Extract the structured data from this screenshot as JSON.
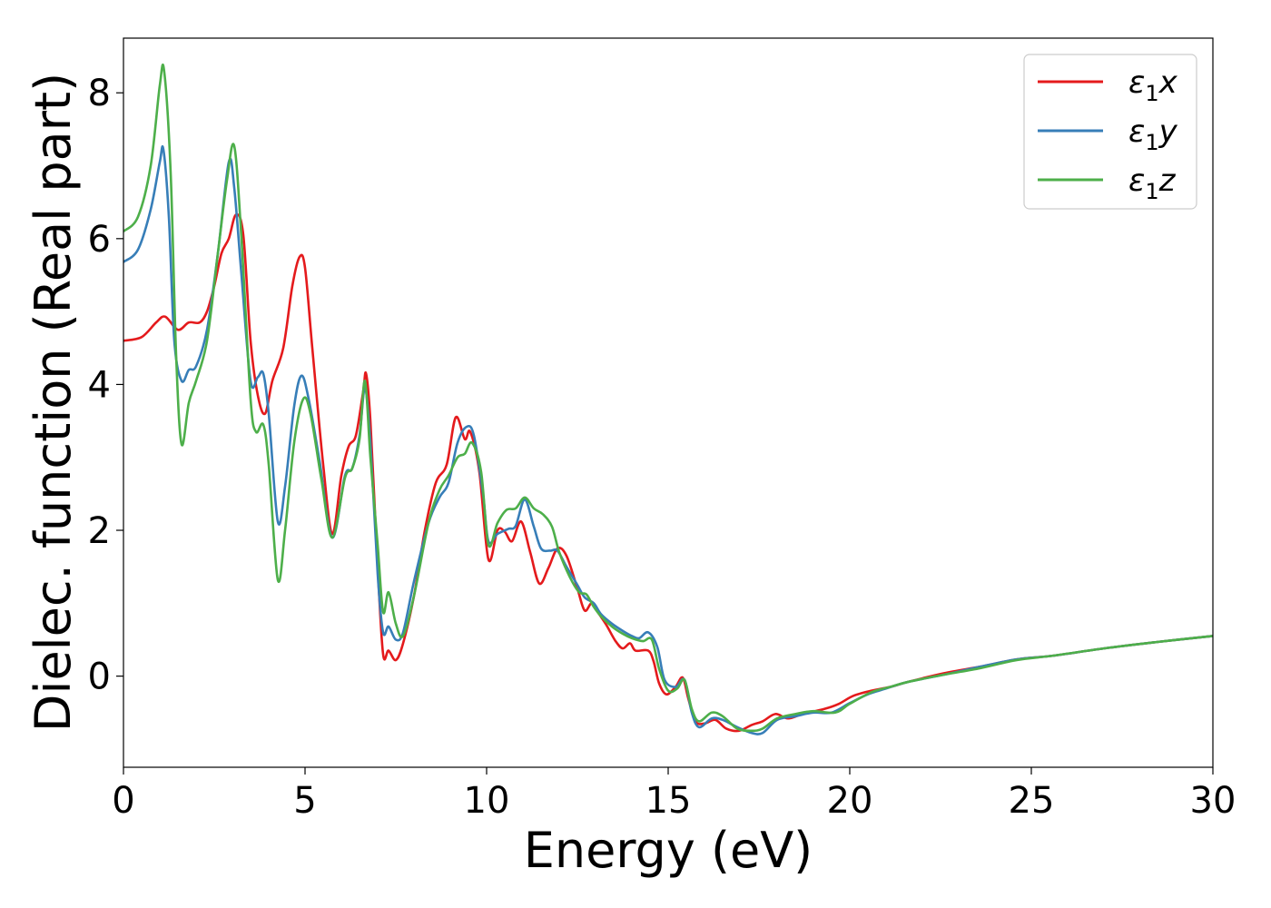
{
  "chart_data": {
    "type": "line",
    "xlabel": "Energy (eV)",
    "ylabel": "Dielec. function (Real part)",
    "xlim": [
      0,
      30
    ],
    "ylim": [
      -1.25,
      8.75
    ],
    "xticks": [
      0,
      5,
      10,
      15,
      20,
      25,
      30
    ],
    "yticks": [
      0,
      2,
      4,
      6,
      8
    ],
    "xtick_labels": [
      "0",
      "5",
      "10",
      "15",
      "20",
      "25",
      "30"
    ],
    "ytick_labels": [
      "0",
      "2",
      "4",
      "6",
      "8"
    ],
    "grid": false,
    "legend_position": "top-right",
    "series": [
      {
        "name": "ε₁x",
        "label_parts": {
          "base": "ε",
          "sub": "1",
          "suffix": "x"
        },
        "color": "#e41a1c",
        "points": [
          [
            0,
            4.6
          ],
          [
            0.5,
            4.65
          ],
          [
            0.9,
            4.85
          ],
          [
            1.15,
            4.93
          ],
          [
            1.5,
            4.75
          ],
          [
            1.8,
            4.85
          ],
          [
            2.1,
            4.85
          ],
          [
            2.3,
            5.0
          ],
          [
            2.5,
            5.35
          ],
          [
            2.7,
            5.8
          ],
          [
            2.9,
            6.0
          ],
          [
            3.1,
            6.33
          ],
          [
            3.3,
            6.05
          ],
          [
            3.5,
            4.6
          ],
          [
            3.7,
            3.85
          ],
          [
            3.9,
            3.6
          ],
          [
            4.1,
            4.05
          ],
          [
            4.4,
            4.5
          ],
          [
            4.65,
            5.35
          ],
          [
            4.85,
            5.75
          ],
          [
            5.0,
            5.6
          ],
          [
            5.2,
            4.5
          ],
          [
            5.5,
            2.9
          ],
          [
            5.75,
            1.95
          ],
          [
            6.0,
            2.75
          ],
          [
            6.2,
            3.15
          ],
          [
            6.4,
            3.3
          ],
          [
            6.6,
            3.9
          ],
          [
            6.68,
            4.15
          ],
          [
            6.8,
            3.5
          ],
          [
            7.0,
            1.5
          ],
          [
            7.15,
            0.3
          ],
          [
            7.3,
            0.35
          ],
          [
            7.5,
            0.22
          ],
          [
            7.7,
            0.45
          ],
          [
            8.0,
            1.1
          ],
          [
            8.3,
            2.0
          ],
          [
            8.6,
            2.65
          ],
          [
            8.9,
            2.9
          ],
          [
            9.15,
            3.55
          ],
          [
            9.4,
            3.25
          ],
          [
            9.55,
            3.35
          ],
          [
            9.8,
            2.8
          ],
          [
            10.05,
            1.6
          ],
          [
            10.3,
            2.0
          ],
          [
            10.5,
            1.98
          ],
          [
            10.7,
            1.85
          ],
          [
            10.95,
            2.12
          ],
          [
            11.2,
            1.7
          ],
          [
            11.45,
            1.27
          ],
          [
            11.7,
            1.48
          ],
          [
            11.95,
            1.75
          ],
          [
            12.2,
            1.65
          ],
          [
            12.5,
            1.2
          ],
          [
            12.7,
            0.9
          ],
          [
            12.9,
            1.0
          ],
          [
            13.1,
            0.85
          ],
          [
            13.3,
            0.7
          ],
          [
            13.55,
            0.48
          ],
          [
            13.75,
            0.38
          ],
          [
            13.95,
            0.45
          ],
          [
            14.1,
            0.35
          ],
          [
            14.45,
            0.35
          ],
          [
            14.6,
            0.2
          ],
          [
            14.75,
            -0.1
          ],
          [
            14.95,
            -0.25
          ],
          [
            15.2,
            -0.15
          ],
          [
            15.4,
            -0.02
          ],
          [
            15.55,
            -0.3
          ],
          [
            15.75,
            -0.62
          ],
          [
            16.0,
            -0.65
          ],
          [
            16.3,
            -0.6
          ],
          [
            16.6,
            -0.72
          ],
          [
            16.95,
            -0.75
          ],
          [
            17.3,
            -0.67
          ],
          [
            17.6,
            -0.62
          ],
          [
            17.95,
            -0.52
          ],
          [
            18.3,
            -0.58
          ],
          [
            18.7,
            -0.52
          ],
          [
            19.3,
            -0.45
          ],
          [
            19.7,
            -0.38
          ],
          [
            20.1,
            -0.27
          ],
          [
            20.6,
            -0.2
          ],
          [
            21.1,
            -0.15
          ],
          [
            21.6,
            -0.08
          ],
          [
            22.6,
            0.04
          ],
          [
            23.6,
            0.13
          ],
          [
            24.6,
            0.23
          ],
          [
            25.6,
            0.28
          ],
          [
            27.0,
            0.38
          ],
          [
            28.5,
            0.47
          ],
          [
            30.0,
            0.55
          ]
        ]
      },
      {
        "name": "ε₁y",
        "label_parts": {
          "base": "ε",
          "sub": "1",
          "suffix": "y"
        },
        "color": "#377eb8",
        "points": [
          [
            0,
            5.68
          ],
          [
            0.4,
            5.85
          ],
          [
            0.75,
            6.4
          ],
          [
            1.0,
            7.05
          ],
          [
            1.1,
            7.22
          ],
          [
            1.25,
            6.3
          ],
          [
            1.4,
            4.6
          ],
          [
            1.6,
            4.05
          ],
          [
            1.8,
            4.2
          ],
          [
            2.0,
            4.25
          ],
          [
            2.3,
            4.75
          ],
          [
            2.6,
            5.8
          ],
          [
            2.9,
            7.05
          ],
          [
            3.05,
            6.7
          ],
          [
            3.25,
            5.5
          ],
          [
            3.5,
            4.05
          ],
          [
            3.7,
            4.1
          ],
          [
            3.85,
            4.15
          ],
          [
            4.0,
            3.6
          ],
          [
            4.25,
            2.12
          ],
          [
            4.45,
            2.6
          ],
          [
            4.7,
            3.7
          ],
          [
            4.9,
            4.12
          ],
          [
            5.1,
            3.8
          ],
          [
            5.4,
            2.95
          ],
          [
            5.75,
            1.9
          ],
          [
            6.1,
            2.75
          ],
          [
            6.3,
            2.85
          ],
          [
            6.5,
            3.3
          ],
          [
            6.65,
            3.95
          ],
          [
            6.8,
            3.2
          ],
          [
            7.0,
            1.4
          ],
          [
            7.15,
            0.6
          ],
          [
            7.3,
            0.68
          ],
          [
            7.5,
            0.5
          ],
          [
            7.7,
            0.6
          ],
          [
            8.0,
            1.3
          ],
          [
            8.4,
            2.1
          ],
          [
            8.7,
            2.45
          ],
          [
            8.95,
            2.65
          ],
          [
            9.2,
            3.2
          ],
          [
            9.45,
            3.42
          ],
          [
            9.65,
            3.3
          ],
          [
            9.9,
            2.5
          ],
          [
            10.05,
            1.85
          ],
          [
            10.3,
            1.95
          ],
          [
            10.6,
            2.02
          ],
          [
            10.8,
            2.06
          ],
          [
            11.05,
            2.42
          ],
          [
            11.3,
            2.05
          ],
          [
            11.5,
            1.75
          ],
          [
            11.75,
            1.72
          ],
          [
            11.95,
            1.72
          ],
          [
            12.2,
            1.5
          ],
          [
            12.5,
            1.25
          ],
          [
            12.7,
            1.08
          ],
          [
            12.95,
            1.0
          ],
          [
            13.15,
            0.85
          ],
          [
            13.45,
            0.72
          ],
          [
            13.75,
            0.62
          ],
          [
            14.0,
            0.55
          ],
          [
            14.2,
            0.52
          ],
          [
            14.45,
            0.6
          ],
          [
            14.7,
            0.4
          ],
          [
            14.9,
            -0.05
          ],
          [
            15.2,
            -0.15
          ],
          [
            15.45,
            -0.05
          ],
          [
            15.65,
            -0.5
          ],
          [
            15.85,
            -0.7
          ],
          [
            16.2,
            -0.58
          ],
          [
            16.5,
            -0.6
          ],
          [
            16.9,
            -0.7
          ],
          [
            17.3,
            -0.78
          ],
          [
            17.6,
            -0.78
          ],
          [
            18.0,
            -0.6
          ],
          [
            18.5,
            -0.55
          ],
          [
            19.0,
            -0.5
          ],
          [
            19.5,
            -0.5
          ],
          [
            20.0,
            -0.37
          ],
          [
            20.5,
            -0.25
          ],
          [
            21.0,
            -0.17
          ],
          [
            21.6,
            -0.08
          ],
          [
            22.6,
            0.02
          ],
          [
            23.6,
            0.13
          ],
          [
            24.6,
            0.23
          ],
          [
            25.6,
            0.28
          ],
          [
            27.0,
            0.38
          ],
          [
            28.5,
            0.47
          ],
          [
            30.0,
            0.55
          ]
        ]
      },
      {
        "name": "ε₁z",
        "label_parts": {
          "base": "ε",
          "sub": "1",
          "suffix": "z"
        },
        "color": "#4daf4a",
        "points": [
          [
            0,
            6.1
          ],
          [
            0.4,
            6.3
          ],
          [
            0.75,
            7.0
          ],
          [
            1.0,
            8.1
          ],
          [
            1.12,
            8.3
          ],
          [
            1.3,
            6.9
          ],
          [
            1.45,
            4.4
          ],
          [
            1.6,
            3.18
          ],
          [
            1.8,
            3.75
          ],
          [
            2.0,
            4.05
          ],
          [
            2.3,
            4.6
          ],
          [
            2.6,
            5.8
          ],
          [
            2.85,
            6.8
          ],
          [
            3.05,
            7.27
          ],
          [
            3.25,
            6.0
          ],
          [
            3.5,
            3.8
          ],
          [
            3.65,
            3.35
          ],
          [
            3.85,
            3.45
          ],
          [
            4.0,
            2.9
          ],
          [
            4.25,
            1.32
          ],
          [
            4.45,
            2.0
          ],
          [
            4.7,
            3.2
          ],
          [
            4.95,
            3.8
          ],
          [
            5.15,
            3.6
          ],
          [
            5.45,
            2.7
          ],
          [
            5.75,
            1.9
          ],
          [
            6.1,
            2.72
          ],
          [
            6.3,
            2.85
          ],
          [
            6.5,
            3.25
          ],
          [
            6.65,
            4.05
          ],
          [
            6.8,
            3.0
          ],
          [
            7.0,
            1.8
          ],
          [
            7.15,
            0.88
          ],
          [
            7.3,
            1.15
          ],
          [
            7.5,
            0.72
          ],
          [
            7.7,
            0.55
          ],
          [
            8.0,
            1.1
          ],
          [
            8.4,
            2.1
          ],
          [
            8.7,
            2.55
          ],
          [
            8.95,
            2.75
          ],
          [
            9.2,
            3.0
          ],
          [
            9.4,
            3.05
          ],
          [
            9.6,
            3.2
          ],
          [
            9.85,
            2.8
          ],
          [
            10.05,
            1.8
          ],
          [
            10.3,
            2.1
          ],
          [
            10.55,
            2.28
          ],
          [
            10.8,
            2.3
          ],
          [
            11.05,
            2.45
          ],
          [
            11.3,
            2.3
          ],
          [
            11.55,
            2.22
          ],
          [
            11.8,
            2.05
          ],
          [
            12.0,
            1.7
          ],
          [
            12.3,
            1.35
          ],
          [
            12.55,
            1.15
          ],
          [
            12.75,
            1.12
          ],
          [
            12.95,
            0.95
          ],
          [
            13.15,
            0.82
          ],
          [
            13.45,
            0.68
          ],
          [
            13.75,
            0.58
          ],
          [
            14.0,
            0.52
          ],
          [
            14.3,
            0.48
          ],
          [
            14.55,
            0.5
          ],
          [
            14.75,
            0.1
          ],
          [
            15.0,
            -0.2
          ],
          [
            15.25,
            -0.17
          ],
          [
            15.45,
            -0.05
          ],
          [
            15.65,
            -0.45
          ],
          [
            15.85,
            -0.62
          ],
          [
            16.2,
            -0.5
          ],
          [
            16.5,
            -0.55
          ],
          [
            16.9,
            -0.72
          ],
          [
            17.3,
            -0.75
          ],
          [
            17.6,
            -0.72
          ],
          [
            18.0,
            -0.58
          ],
          [
            18.5,
            -0.52
          ],
          [
            19.0,
            -0.48
          ],
          [
            19.6,
            -0.5
          ],
          [
            20.0,
            -0.38
          ],
          [
            20.6,
            -0.22
          ],
          [
            21.1,
            -0.15
          ],
          [
            21.6,
            -0.08
          ],
          [
            22.6,
            0.02
          ],
          [
            23.6,
            0.11
          ],
          [
            24.6,
            0.22
          ],
          [
            25.6,
            0.28
          ],
          [
            27.0,
            0.38
          ],
          [
            28.5,
            0.47
          ],
          [
            30.0,
            0.55
          ]
        ]
      }
    ]
  }
}
